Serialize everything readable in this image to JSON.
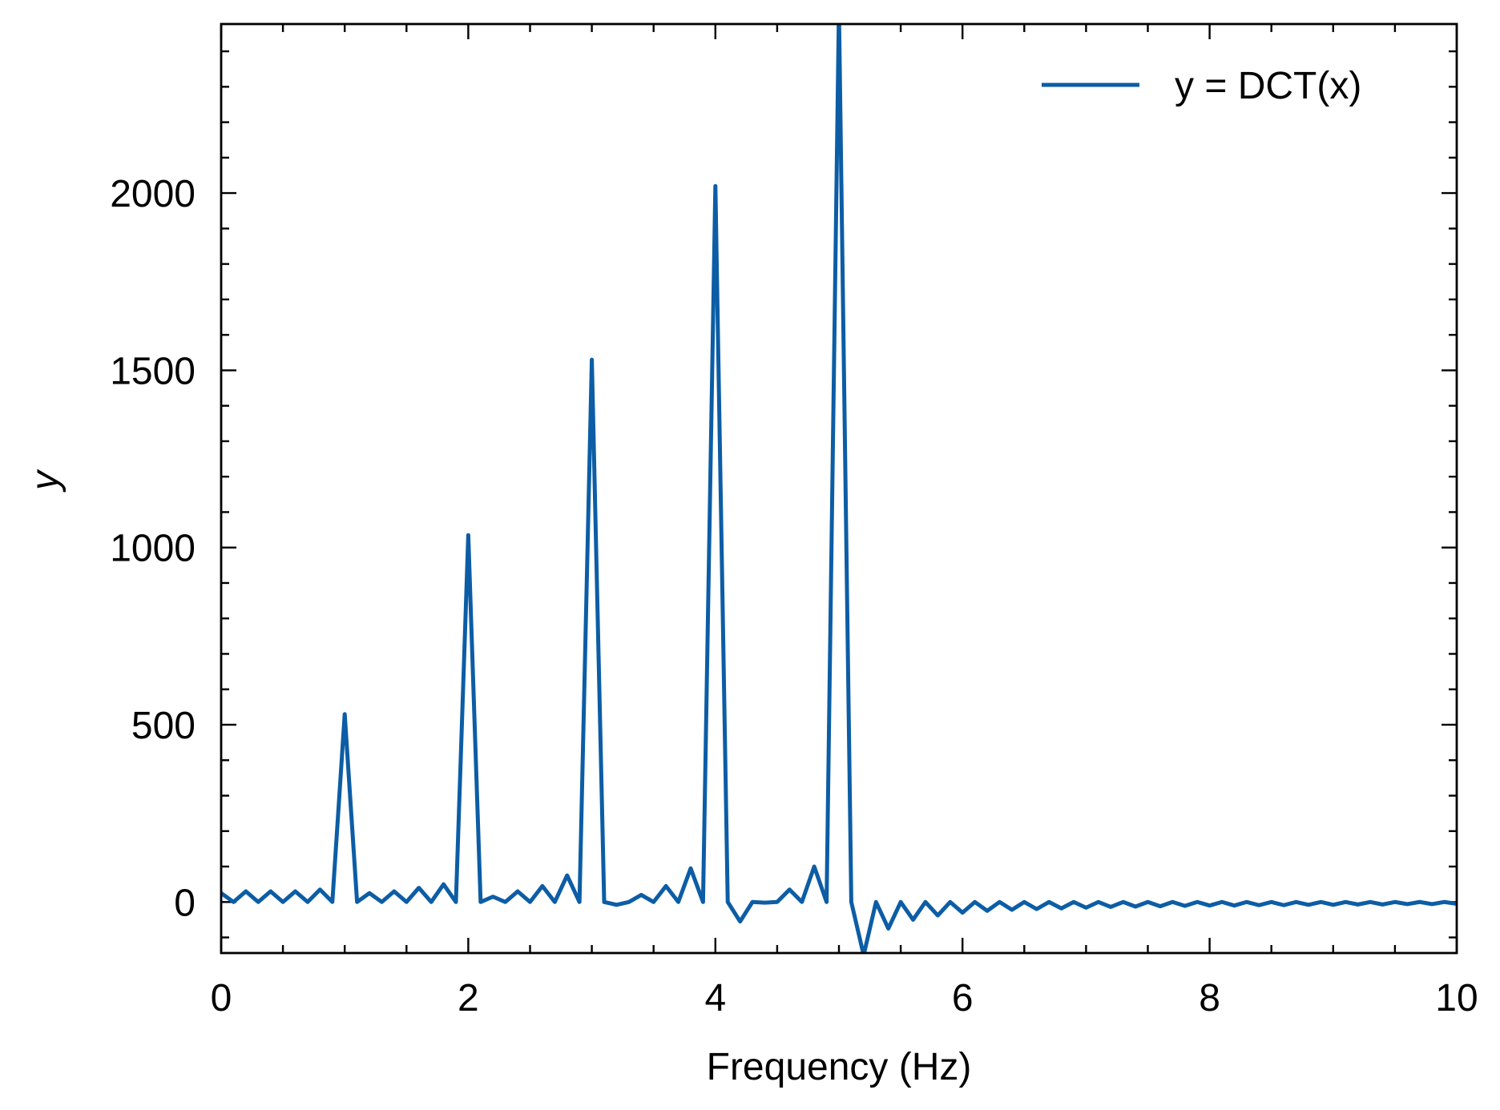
{
  "chart_data": {
    "type": "line",
    "xlabel": "Frequency (Hz)",
    "ylabel": "y",
    "x": [
      0,
      0.1,
      0.2,
      0.3,
      0.4,
      0.5,
      0.6,
      0.7,
      0.8,
      0.9,
      1,
      1.1,
      1.2,
      1.3,
      1.4,
      1.5,
      1.6,
      1.7,
      1.8,
      1.9,
      2,
      2.1,
      2.2,
      2.3,
      2.4,
      2.5,
      2.6,
      2.7,
      2.8,
      2.9,
      3,
      3.1,
      3.2,
      3.3,
      3.4,
      3.5,
      3.6,
      3.7,
      3.8,
      3.9,
      4,
      4.1,
      4.2,
      4.3,
      4.4,
      4.5,
      4.6,
      4.7,
      4.8,
      4.9,
      5,
      5.1,
      5.2,
      5.3,
      5.4,
      5.5,
      5.6,
      5.7,
      5.8,
      5.9,
      6,
      6.1,
      6.2,
      6.3,
      6.4,
      6.5,
      6.6,
      6.7,
      6.8,
      6.9,
      7,
      7.1,
      7.2,
      7.3,
      7.4,
      7.5,
      7.6,
      7.7,
      7.8,
      7.9,
      8,
      8.1,
      8.2,
      8.3,
      8.4,
      8.5,
      8.6,
      8.7,
      8.8,
      8.9,
      9,
      9.1,
      9.2,
      9.3,
      9.4,
      9.5,
      9.6,
      9.7,
      9.8,
      9.9,
      10
    ],
    "series": [
      {
        "name": "y = DCT(x)",
        "color": "#0c5da5",
        "values": [
          25,
          0,
          30,
          0,
          30,
          0,
          30,
          0,
          35,
          0,
          530,
          0,
          25,
          0,
          30,
          0,
          40,
          0,
          50,
          0,
          1035,
          0,
          15,
          0,
          30,
          0,
          45,
          0,
          75,
          0,
          1530,
          0,
          -8,
          0,
          20,
          0,
          45,
          0,
          95,
          0,
          2020,
          0,
          -55,
          0,
          -2,
          0,
          35,
          0,
          100,
          0,
          2520,
          0,
          -150,
          0,
          -75,
          0,
          -50,
          0,
          -38,
          0,
          -30,
          0,
          -25,
          0,
          -22,
          0,
          -20,
          0,
          -18,
          0,
          -16,
          0,
          -14,
          0,
          -13,
          0,
          -12,
          0,
          -11,
          0,
          -10,
          0,
          -10,
          0,
          -9,
          0,
          -9,
          0,
          -8,
          0,
          -8,
          0,
          -7,
          0,
          -7,
          0,
          -6,
          0,
          -6,
          0,
          -5
        ]
      }
    ],
    "xlim": [
      0,
      10
    ],
    "ylim": [
      -144,
      2477
    ],
    "xticks": [
      0,
      2,
      4,
      6,
      8,
      10
    ],
    "yticks": [
      0,
      500,
      1000,
      1500,
      2000
    ],
    "xminorticks": [
      0.5,
      1,
      1.5,
      2.5,
      3,
      3.5,
      4.5,
      5,
      5.5,
      6.5,
      7,
      7.5,
      8.5,
      9,
      9.5
    ],
    "yminorticks": [
      -100,
      100,
      200,
      300,
      400,
      600,
      700,
      800,
      900,
      1100,
      1200,
      1300,
      1400,
      1600,
      1700,
      1800,
      1900,
      2100,
      2200,
      2300,
      2400
    ],
    "legend": "upper right",
    "grid": false
  }
}
